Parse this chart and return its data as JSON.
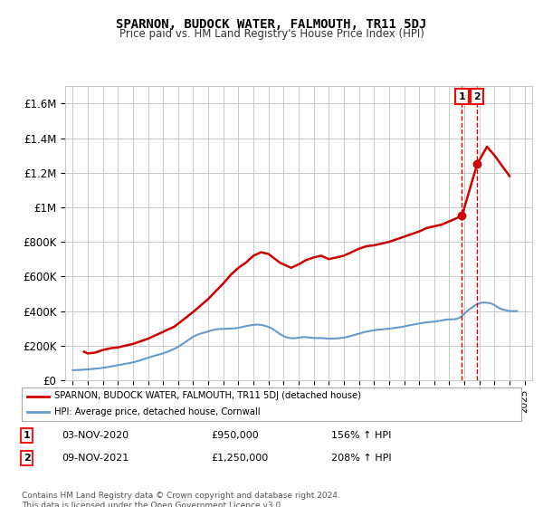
{
  "title": "SPARNON, BUDOCK WATER, FALMOUTH, TR11 5DJ",
  "subtitle": "Price paid vs. HM Land Registry's House Price Index (HPI)",
  "ylim": [
    0,
    1700000
  ],
  "yticks": [
    0,
    200000,
    400000,
    600000,
    800000,
    1000000,
    1200000,
    1400000,
    1600000
  ],
  "ytick_labels": [
    "£0",
    "£200K",
    "£400K",
    "£600K",
    "£800K",
    "£1M",
    "£1.2M",
    "£1.4M",
    "£1.6M"
  ],
  "x_start_year": 1995,
  "x_end_year": 2025,
  "hpi_color": "#6699cc",
  "price_color": "#cc0000",
  "marker_color": "#cc0000",
  "dashed_line_color": "#cc0000",
  "background_color": "#ffffff",
  "grid_color": "#cccccc",
  "legend_label_price": "SPARNON, BUDOCK WATER, FALMOUTH, TR11 5DJ (detached house)",
  "legend_label_hpi": "HPI: Average price, detached house, Cornwall",
  "transaction1_label": "1",
  "transaction1_date": "03-NOV-2020",
  "transaction1_price": "£950,000",
  "transaction1_hpi": "156% ↑ HPI",
  "transaction1_year": 2020.84,
  "transaction1_value": 950000,
  "transaction2_label": "2",
  "transaction2_date": "09-NOV-2021",
  "transaction2_price": "£1,250,000",
  "transaction2_hpi": "208% ↑ HPI",
  "transaction2_year": 2021.85,
  "transaction2_value": 1250000,
  "footer": "Contains HM Land Registry data © Crown copyright and database right 2024.\nThis data is licensed under the Open Government Licence v3.0.",
  "hpi_data_x": [
    1995.0,
    1995.25,
    1995.5,
    1995.75,
    1996.0,
    1996.25,
    1996.5,
    1996.75,
    1997.0,
    1997.25,
    1997.5,
    1997.75,
    1998.0,
    1998.25,
    1998.5,
    1998.75,
    1999.0,
    1999.25,
    1999.5,
    1999.75,
    2000.0,
    2000.25,
    2000.5,
    2000.75,
    2001.0,
    2001.25,
    2001.5,
    2001.75,
    2002.0,
    2002.25,
    2002.5,
    2002.75,
    2003.0,
    2003.25,
    2003.5,
    2003.75,
    2004.0,
    2004.25,
    2004.5,
    2004.75,
    2005.0,
    2005.25,
    2005.5,
    2005.75,
    2006.0,
    2006.25,
    2006.5,
    2006.75,
    2007.0,
    2007.25,
    2007.5,
    2007.75,
    2008.0,
    2008.25,
    2008.5,
    2008.75,
    2009.0,
    2009.25,
    2009.5,
    2009.75,
    2010.0,
    2010.25,
    2010.5,
    2010.75,
    2011.0,
    2011.25,
    2011.5,
    2011.75,
    2012.0,
    2012.25,
    2012.5,
    2012.75,
    2013.0,
    2013.25,
    2013.5,
    2013.75,
    2014.0,
    2014.25,
    2014.5,
    2014.75,
    2015.0,
    2015.25,
    2015.5,
    2015.75,
    2016.0,
    2016.25,
    2016.5,
    2016.75,
    2017.0,
    2017.25,
    2017.5,
    2017.75,
    2018.0,
    2018.25,
    2018.5,
    2018.75,
    2019.0,
    2019.25,
    2019.5,
    2019.75,
    2020.0,
    2020.25,
    2020.5,
    2020.75,
    2021.0,
    2021.25,
    2021.5,
    2021.75,
    2022.0,
    2022.25,
    2022.5,
    2022.75,
    2023.0,
    2023.25,
    2023.5,
    2023.75,
    2024.0,
    2024.25,
    2024.5
  ],
  "hpi_data_y": [
    58000,
    59000,
    60000,
    61000,
    63000,
    65000,
    67000,
    69000,
    72000,
    75000,
    79000,
    83000,
    87000,
    91000,
    95000,
    99000,
    103000,
    109000,
    116000,
    123000,
    130000,
    137000,
    143000,
    149000,
    155000,
    163000,
    172000,
    182000,
    193000,
    207000,
    222000,
    237000,
    252000,
    262000,
    270000,
    276000,
    282000,
    289000,
    294000,
    296000,
    297000,
    298000,
    299000,
    300000,
    303000,
    308000,
    313000,
    317000,
    320000,
    322000,
    320000,
    315000,
    308000,
    298000,
    283000,
    268000,
    255000,
    247000,
    243000,
    243000,
    246000,
    249000,
    249000,
    247000,
    244000,
    244000,
    244000,
    242000,
    241000,
    241000,
    242000,
    244000,
    246000,
    251000,
    257000,
    263000,
    269000,
    276000,
    281000,
    285000,
    289000,
    292000,
    294000,
    296000,
    298000,
    301000,
    304000,
    307000,
    311000,
    316000,
    320000,
    324000,
    328000,
    332000,
    335000,
    337000,
    339000,
    342000,
    346000,
    350000,
    352000,
    352000,
    355000,
    365000,
    385000,
    405000,
    420000,
    435000,
    445000,
    450000,
    448000,
    445000,
    435000,
    420000,
    410000,
    405000,
    400000,
    400000,
    400000
  ],
  "price_data_x": [
    1995.75,
    1996.0,
    1996.5,
    1997.0,
    1997.5,
    1998.0,
    1998.5,
    1999.0,
    1999.5,
    2000.0,
    2000.5,
    2001.0,
    2001.75,
    2003.0,
    2004.0,
    2005.0,
    2005.5,
    2006.0,
    2006.5,
    2007.0,
    2007.5,
    2008.0,
    2008.75,
    2009.5,
    2010.0,
    2010.5,
    2011.0,
    2011.5,
    2012.0,
    2012.5,
    2013.0,
    2013.5,
    2014.0,
    2014.5,
    2015.0,
    2015.5,
    2016.0,
    2016.5,
    2017.0,
    2017.5,
    2018.0,
    2018.5,
    2019.0,
    2019.5,
    2020.84,
    2021.85,
    2022.5,
    2023.0,
    2024.0
  ],
  "price_data_y": [
    165000,
    155000,
    160000,
    175000,
    185000,
    190000,
    200000,
    210000,
    225000,
    240000,
    260000,
    280000,
    310000,
    395000,
    470000,
    560000,
    610000,
    650000,
    680000,
    720000,
    740000,
    730000,
    680000,
    650000,
    670000,
    695000,
    710000,
    720000,
    700000,
    710000,
    720000,
    740000,
    760000,
    775000,
    780000,
    790000,
    800000,
    815000,
    830000,
    845000,
    860000,
    880000,
    890000,
    900000,
    950000,
    1250000,
    1350000,
    1300000,
    1180000
  ]
}
